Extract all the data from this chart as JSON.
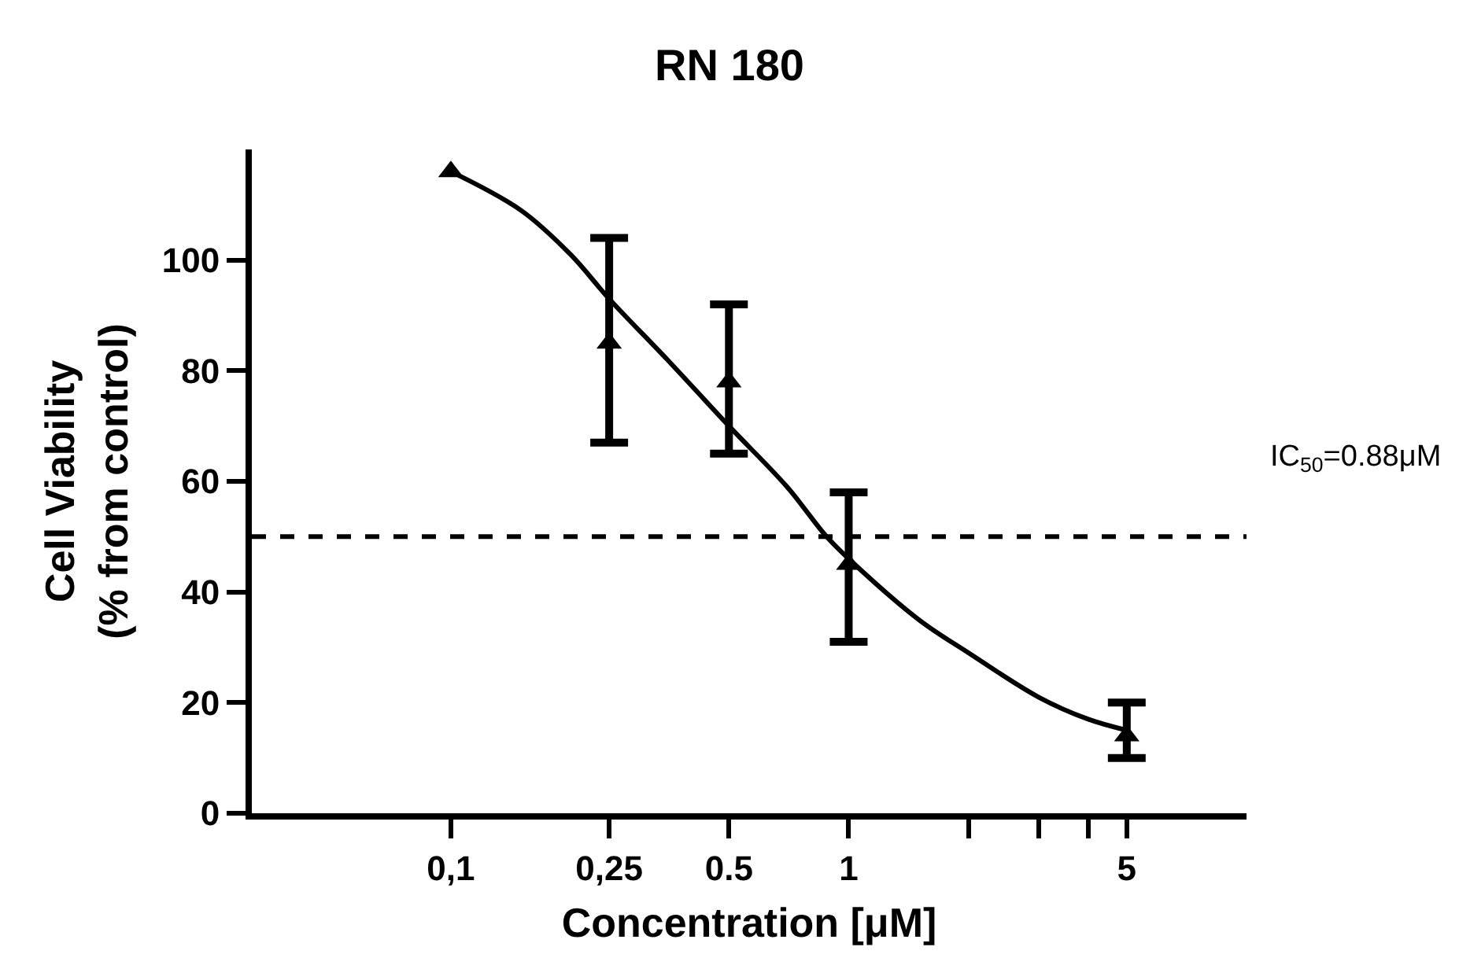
{
  "chart_data": {
    "type": "scatter",
    "title": "RN 180",
    "xlabel": "Concentration [μM]",
    "ylabel": "Cell Viability\n(% from control)",
    "log": "x",
    "xlim": [
      0.0316,
      10
    ],
    "ylim": [
      0,
      120
    ],
    "xticks": [
      {
        "value": 0.1,
        "label": "0,1"
      },
      {
        "value": 0.25,
        "label": "0,25"
      },
      {
        "value": 0.5,
        "label": "0.5"
      },
      1,
      {
        "value": 2,
        "label": null
      },
      {
        "value": 3,
        "label": null
      },
      {
        "value": 4,
        "label": null
      },
      5
    ],
    "yticks": [
      0,
      20,
      40,
      60,
      80,
      100
    ],
    "series": [
      {
        "color": "#000000",
        "marker": "triangle",
        "x": [
          0.1,
          0.25,
          0.5,
          1,
          5
        ],
        "values": [
          116,
          85,
          78,
          45,
          14
        ],
        "errors": [
          null,
          [
            67,
            104
          ],
          [
            65,
            92
          ],
          [
            31,
            58
          ],
          [
            10,
            20
          ]
        ]
      },
      {
        "type": "line",
        "color": "#000000",
        "marker": "none",
        "line_style": "solid",
        "x": [
          0.1,
          0.15,
          0.2,
          0.25,
          0.35,
          0.5,
          0.7,
          0.88,
          1,
          1.5,
          2,
          3,
          4,
          5
        ],
        "values": [
          116,
          109,
          101,
          93,
          82,
          70,
          59,
          50,
          46,
          35,
          29,
          21,
          17,
          15
        ]
      }
    ],
    "ref_lines": [
      {
        "axis": "y",
        "value": 50,
        "line_style": "dashed",
        "color": "#000000"
      }
    ],
    "annotations": [
      "IC$_{50}$=0.88μM"
    ]
  }
}
